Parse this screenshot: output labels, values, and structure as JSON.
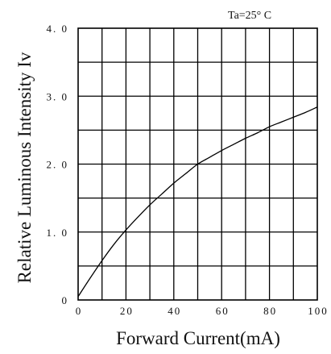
{
  "chart_data": {
    "type": "line",
    "annotation": "Ta=25° C",
    "xlabel": "Forward Current(mA)",
    "ylabel": "Relative Luminous Intensity Iv",
    "xlim": [
      0,
      100
    ],
    "ylim": [
      0,
      4.0
    ],
    "x_ticks": [
      0,
      20,
      40,
      60,
      80,
      100
    ],
    "x_tick_labels": [
      "0",
      "20",
      "40",
      "60",
      "80",
      "100"
    ],
    "y_ticks": [
      0,
      1.0,
      2.0,
      3.0,
      4.0
    ],
    "y_tick_labels": [
      "0",
      "1. 0",
      "2. 0",
      "3. 0",
      "4. 0"
    ],
    "grid": true,
    "grid_x_step": 10,
    "grid_y_step": 0.5,
    "series": [
      {
        "x": [
          0,
          5,
          10,
          15,
          20,
          25,
          30,
          35,
          40,
          45,
          50,
          55,
          60,
          65,
          70,
          75,
          80,
          85,
          90,
          95,
          100
        ],
        "values": [
          0.05,
          0.32,
          0.58,
          0.82,
          1.03,
          1.22,
          1.4,
          1.56,
          1.72,
          1.86,
          2.0,
          2.1,
          2.2,
          2.29,
          2.38,
          2.46,
          2.55,
          2.62,
          2.69,
          2.76,
          2.84
        ]
      }
    ]
  }
}
